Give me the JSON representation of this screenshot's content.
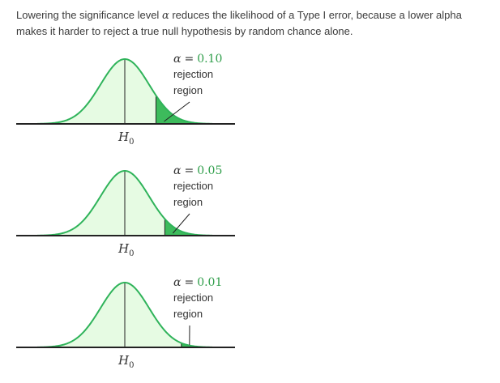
{
  "intro": {
    "before_alpha": "Lowering the significance level ",
    "alpha_symbol": "α",
    "after_alpha": " reduces the likelihood of a Type I error, because a lower alpha makes it harder to reject a true null hypothesis by random chance alone."
  },
  "panels": [
    {
      "alpha_symbol": "α",
      "equals": "=",
      "alpha_value": "0.10",
      "alpha": 0.1,
      "region_line1": "rejection",
      "region_line2": "region",
      "h0_main": "H",
      "h0_sub": "0"
    },
    {
      "alpha_symbol": "α",
      "equals": "=",
      "alpha_value": "0.05",
      "alpha": 0.05,
      "region_line1": "rejection",
      "region_line2": "region",
      "h0_main": "H",
      "h0_sub": "0"
    },
    {
      "alpha_symbol": "α",
      "equals": "=",
      "alpha_value": "0.01",
      "alpha": 0.01,
      "region_line1": "rejection",
      "region_line2": "region",
      "h0_main": "H",
      "h0_sub": "0"
    }
  ],
  "colors": {
    "curve": "#2fb35a",
    "fill": "#e6fbe3",
    "rejection_fill": "#3dbb5c",
    "axis": "#222222",
    "alpha_value": "#2f9e4a"
  }
}
